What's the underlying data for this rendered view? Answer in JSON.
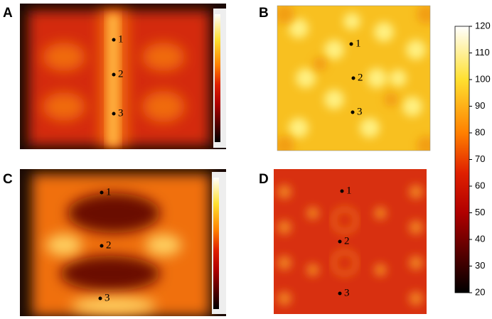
{
  "panels": [
    {
      "label": "A",
      "points": [
        "1",
        "2",
        "3"
      ]
    },
    {
      "label": "B",
      "points": [
        "1",
        "2",
        "3"
      ]
    },
    {
      "label": "C",
      "points": [
        "1",
        "2",
        "3"
      ]
    },
    {
      "label": "D",
      "points": [
        "1",
        "2",
        "3"
      ]
    }
  ],
  "colorbar": {
    "range": [
      20,
      120
    ],
    "ticks": [
      20,
      30,
      40,
      50,
      60,
      70,
      80,
      90,
      100,
      110,
      120
    ]
  }
}
